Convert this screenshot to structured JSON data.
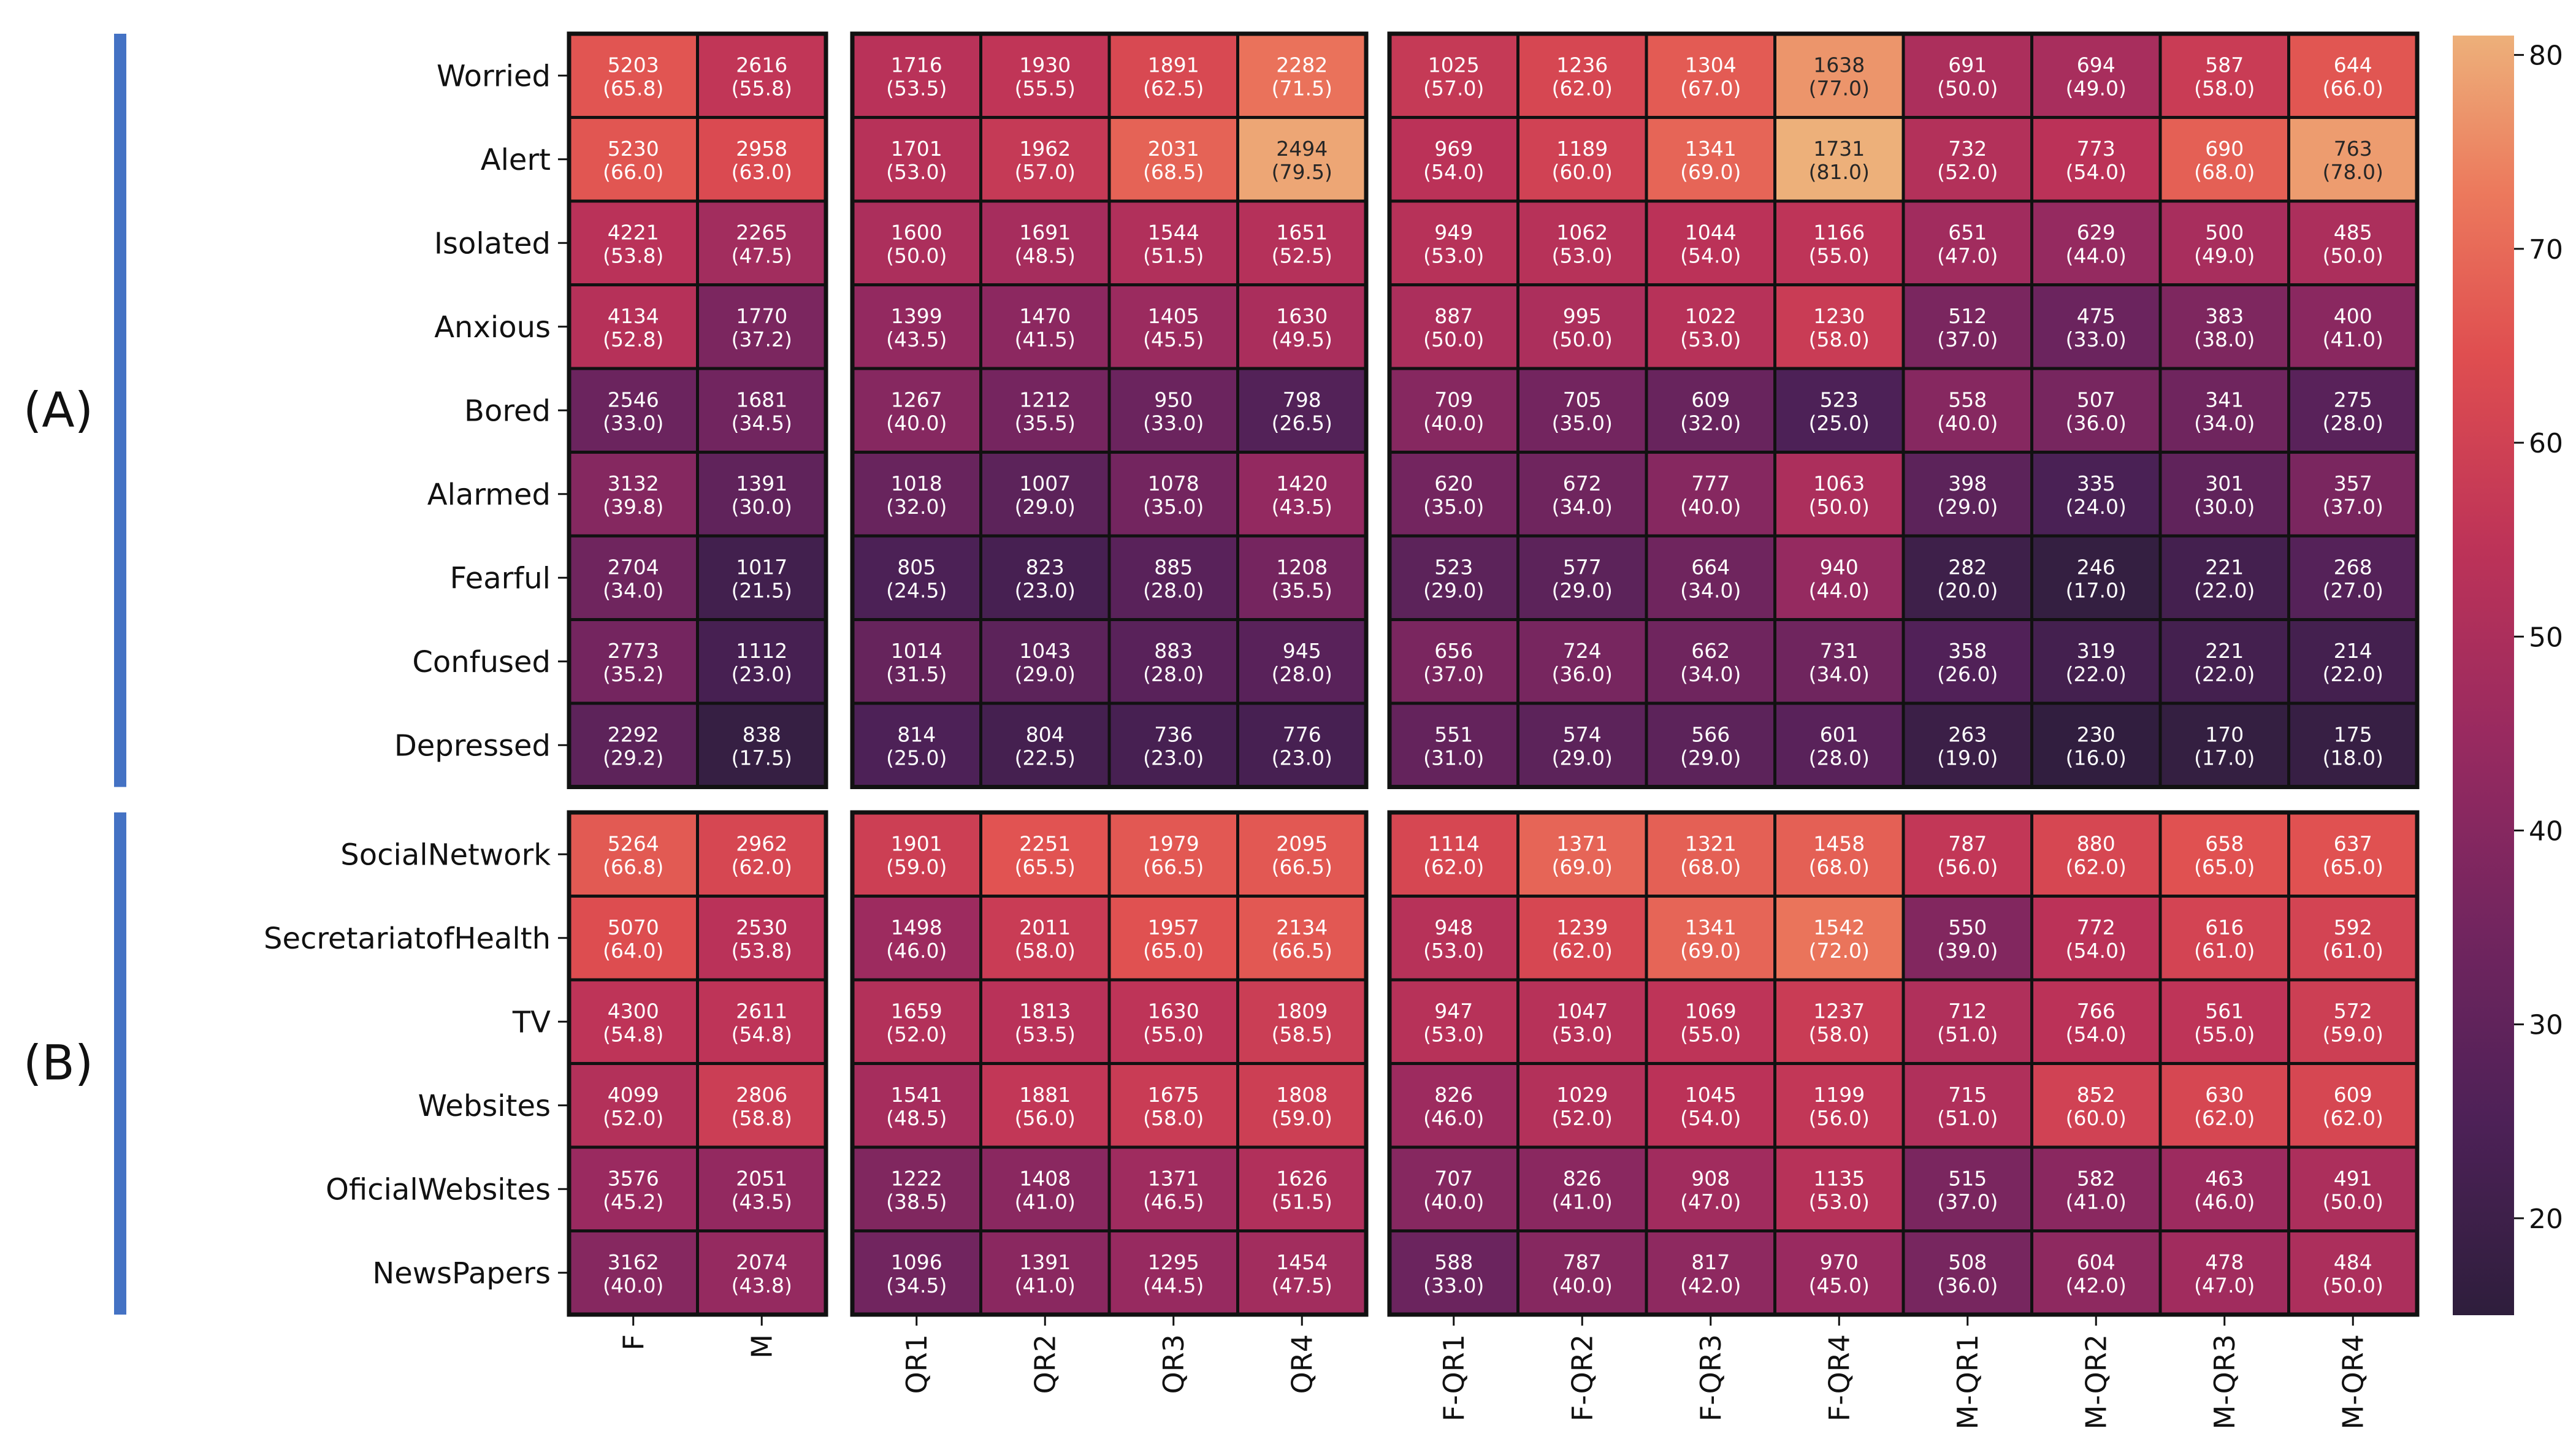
{
  "chart_data": {
    "type": "heatmap",
    "title": "",
    "columns": [
      "F",
      "M",
      "QR1",
      "QR2",
      "QR3",
      "QR4",
      "F-QR1",
      "F-QR2",
      "F-QR3",
      "F-QR4",
      "M-QR1",
      "M-QR2",
      "M-QR3",
      "M-QR4"
    ],
    "column_groups": [
      [
        "F",
        "M"
      ],
      [
        "QR1",
        "QR2",
        "QR3",
        "QR4"
      ],
      [
        "F-QR1",
        "F-QR2",
        "F-QR3",
        "F-QR4",
        "M-QR1",
        "M-QR2",
        "M-QR3",
        "M-QR4"
      ]
    ],
    "colorbar": {
      "min": 15,
      "max": 81,
      "ticks": [
        20,
        30,
        40,
        50,
        60,
        70,
        80
      ]
    },
    "panels": [
      {
        "label": "(A)",
        "rows": [
          {
            "name": "Worried",
            "counts": [
              5203,
              2616,
              1716,
              1930,
              1891,
              2282,
              1025,
              1236,
              1304,
              1638,
              691,
              694,
              587,
              644
            ],
            "percents": [
              "65.8",
              "55.8",
              "53.5",
              "55.5",
              "62.5",
              "71.5",
              "57.0",
              "62.0",
              "67.0",
              "77.0",
              "50.0",
              "49.0",
              "58.0",
              "66.0"
            ]
          },
          {
            "name": "Alert",
            "counts": [
              5230,
              2958,
              1701,
              1962,
              2031,
              2494,
              969,
              1189,
              1341,
              1731,
              732,
              773,
              690,
              763
            ],
            "percents": [
              "66.0",
              "63.0",
              "53.0",
              "57.0",
              "68.5",
              "79.5",
              "54.0",
              "60.0",
              "69.0",
              "81.0",
              "52.0",
              "54.0",
              "68.0",
              "78.0"
            ]
          },
          {
            "name": "Isolated",
            "counts": [
              4221,
              2265,
              1600,
              1691,
              1544,
              1651,
              949,
              1062,
              1044,
              1166,
              651,
              629,
              500,
              485
            ],
            "percents": [
              "53.8",
              "47.5",
              "50.0",
              "48.5",
              "51.5",
              "52.5",
              "53.0",
              "53.0",
              "54.0",
              "55.0",
              "47.0",
              "44.0",
              "49.0",
              "50.0"
            ]
          },
          {
            "name": "Anxious",
            "counts": [
              4134,
              1770,
              1399,
              1470,
              1405,
              1630,
              887,
              995,
              1022,
              1230,
              512,
              475,
              383,
              400
            ],
            "percents": [
              "52.8",
              "37.2",
              "43.5",
              "41.5",
              "45.5",
              "49.5",
              "50.0",
              "50.0",
              "53.0",
              "58.0",
              "37.0",
              "33.0",
              "38.0",
              "41.0"
            ]
          },
          {
            "name": "Bored",
            "counts": [
              2546,
              1681,
              1267,
              1212,
              950,
              798,
              709,
              705,
              609,
              523,
              558,
              507,
              341,
              275
            ],
            "percents": [
              "33.0",
              "34.5",
              "40.0",
              "35.5",
              "33.0",
              "26.5",
              "40.0",
              "35.0",
              "32.0",
              "25.0",
              "40.0",
              "36.0",
              "34.0",
              "28.0"
            ]
          },
          {
            "name": "Alarmed",
            "counts": [
              3132,
              1391,
              1018,
              1007,
              1078,
              1420,
              620,
              672,
              777,
              1063,
              398,
              335,
              301,
              357
            ],
            "percents": [
              "39.8",
              "30.0",
              "32.0",
              "29.0",
              "35.0",
              "43.5",
              "35.0",
              "34.0",
              "40.0",
              "50.0",
              "29.0",
              "24.0",
              "30.0",
              "37.0"
            ]
          },
          {
            "name": "Fearful",
            "counts": [
              2704,
              1017,
              805,
              823,
              885,
              1208,
              523,
              577,
              664,
              940,
              282,
              246,
              221,
              268
            ],
            "percents": [
              "34.0",
              "21.5",
              "24.5",
              "23.0",
              "28.0",
              "35.5",
              "29.0",
              "29.0",
              "34.0",
              "44.0",
              "20.0",
              "17.0",
              "22.0",
              "27.0"
            ]
          },
          {
            "name": "Confused",
            "counts": [
              2773,
              1112,
              1014,
              1043,
              883,
              945,
              656,
              724,
              662,
              731,
              358,
              319,
              221,
              214
            ],
            "percents": [
              "35.2",
              "23.0",
              "31.5",
              "29.0",
              "28.0",
              "28.0",
              "37.0",
              "36.0",
              "34.0",
              "34.0",
              "26.0",
              "22.0",
              "22.0",
              "22.0"
            ]
          },
          {
            "name": "Depressed",
            "counts": [
              2292,
              838,
              814,
              804,
              736,
              776,
              551,
              574,
              566,
              601,
              263,
              230,
              170,
              175
            ],
            "percents": [
              "29.2",
              "17.5",
              "25.0",
              "22.5",
              "23.0",
              "23.0",
              "31.0",
              "29.0",
              "29.0",
              "28.0",
              "19.0",
              "16.0",
              "17.0",
              "18.0"
            ]
          }
        ]
      },
      {
        "label": "(B)",
        "rows": [
          {
            "name": "SocialNetwork",
            "counts": [
              5264,
              2962,
              1901,
              2251,
              1979,
              2095,
              1114,
              1371,
              1321,
              1458,
              787,
              880,
              658,
              637
            ],
            "percents": [
              "66.8",
              "62.0",
              "59.0",
              "65.5",
              "66.5",
              "66.5",
              "62.0",
              "69.0",
              "68.0",
              "68.0",
              "56.0",
              "62.0",
              "65.0",
              "65.0"
            ]
          },
          {
            "name": "SecretariatofHealth",
            "counts": [
              5070,
              2530,
              1498,
              2011,
              1957,
              2134,
              948,
              1239,
              1341,
              1542,
              550,
              772,
              616,
              592
            ],
            "percents": [
              "64.0",
              "53.8",
              "46.0",
              "58.0",
              "65.0",
              "66.5",
              "53.0",
              "62.0",
              "69.0",
              "72.0",
              "39.0",
              "54.0",
              "61.0",
              "61.0"
            ]
          },
          {
            "name": "TV",
            "counts": [
              4300,
              2611,
              1659,
              1813,
              1630,
              1809,
              947,
              1047,
              1069,
              1237,
              712,
              766,
              561,
              572
            ],
            "percents": [
              "54.8",
              "54.8",
              "52.0",
              "53.5",
              "55.0",
              "58.5",
              "53.0",
              "53.0",
              "55.0",
              "58.0",
              "51.0",
              "54.0",
              "55.0",
              "59.0"
            ]
          },
          {
            "name": "Websites",
            "counts": [
              4099,
              2806,
              1541,
              1881,
              1675,
              1808,
              826,
              1029,
              1045,
              1199,
              715,
              852,
              630,
              609
            ],
            "percents": [
              "52.0",
              "58.8",
              "48.5",
              "56.0",
              "58.0",
              "59.0",
              "46.0",
              "52.0",
              "54.0",
              "56.0",
              "51.0",
              "60.0",
              "62.0",
              "62.0"
            ]
          },
          {
            "name": "OficialWebsites",
            "counts": [
              3576,
              2051,
              1222,
              1408,
              1371,
              1626,
              707,
              826,
              908,
              1135,
              515,
              582,
              463,
              491
            ],
            "percents": [
              "45.2",
              "43.5",
              "38.5",
              "41.0",
              "46.5",
              "51.5",
              "40.0",
              "41.0",
              "47.0",
              "53.0",
              "37.0",
              "41.0",
              "46.0",
              "50.0"
            ]
          },
          {
            "name": "NewsPapers",
            "counts": [
              3162,
              2074,
              1096,
              1391,
              1295,
              1454,
              588,
              787,
              817,
              970,
              508,
              604,
              478,
              484
            ],
            "percents": [
              "40.0",
              "43.8",
              "34.5",
              "41.0",
              "44.5",
              "47.5",
              "33.0",
              "40.0",
              "42.0",
              "45.0",
              "36.0",
              "42.0",
              "47.0",
              "50.0"
            ]
          }
        ]
      }
    ]
  }
}
